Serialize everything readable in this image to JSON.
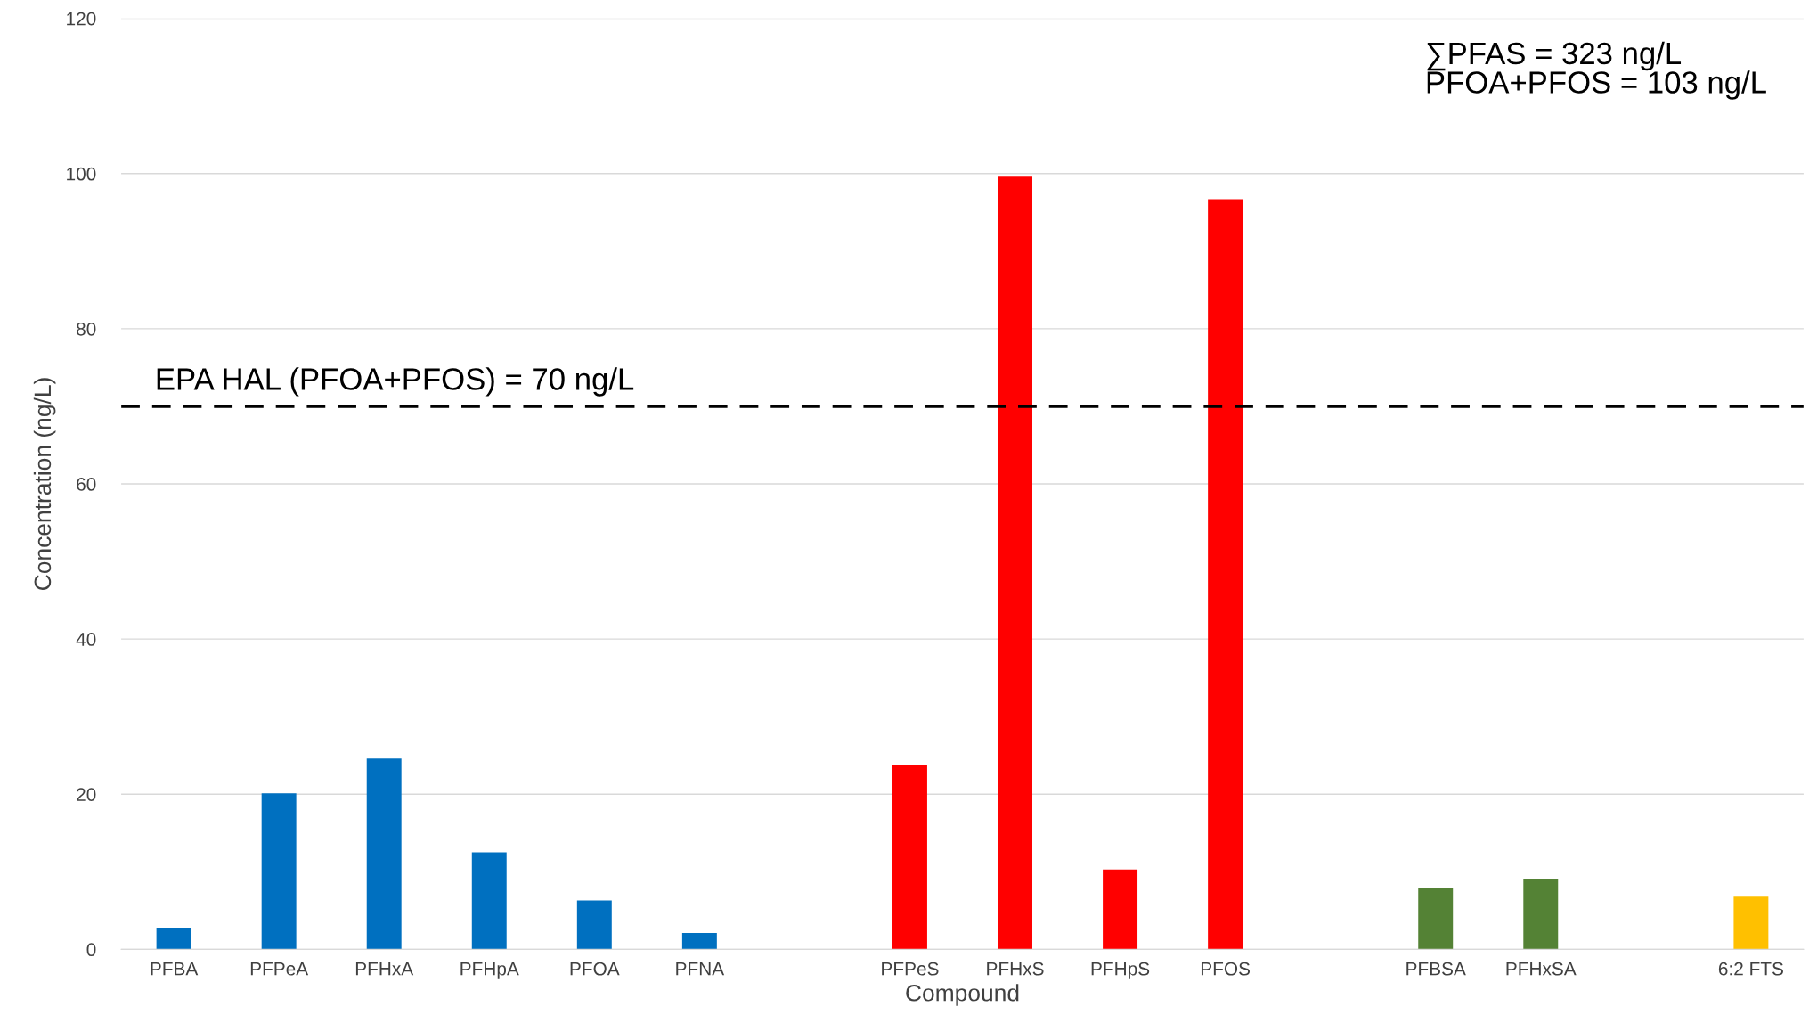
{
  "chart_data": {
    "type": "bar",
    "xlabel": "Compound",
    "ylabel": "Concentration (ng/L)",
    "categories": [
      "PFBA",
      "PFPeA",
      "PFHxA",
      "PFHpA",
      "PFOA",
      "PFNA",
      null,
      "PFPeS",
      "PFHxS",
      "PFHpS",
      "PFOS",
      null,
      "PFBSA",
      "PFHxSA",
      null,
      "6:2 FTS"
    ],
    "values": [
      2.8,
      20.1,
      24.6,
      12.5,
      6.3,
      2.1,
      null,
      23.7,
      99.6,
      10.3,
      96.7,
      null,
      7.9,
      9.1,
      null,
      6.8
    ],
    "colors": [
      "#0070c0",
      "#0070c0",
      "#0070c0",
      "#0070c0",
      "#0070c0",
      "#0070c0",
      null,
      "#ff0000",
      "#ff0000",
      "#ff0000",
      "#ff0000",
      null,
      "#548235",
      "#548235",
      null,
      "#ffc000"
    ],
    "ylim": [
      0,
      120
    ],
    "yticks": [
      0,
      20,
      40,
      60,
      80,
      100,
      120
    ],
    "grid": "y",
    "ref_lines": [
      {
        "axis": "y",
        "value": 70,
        "label": "EPA HAL (PFOA+PFOS) = 70 ng/L",
        "color": "#000000",
        "line_style": "dashed"
      }
    ],
    "annotations": [
      "∑PFAS = 323 ng/L\nPFOA+PFOS = 103 ng/L"
    ]
  }
}
